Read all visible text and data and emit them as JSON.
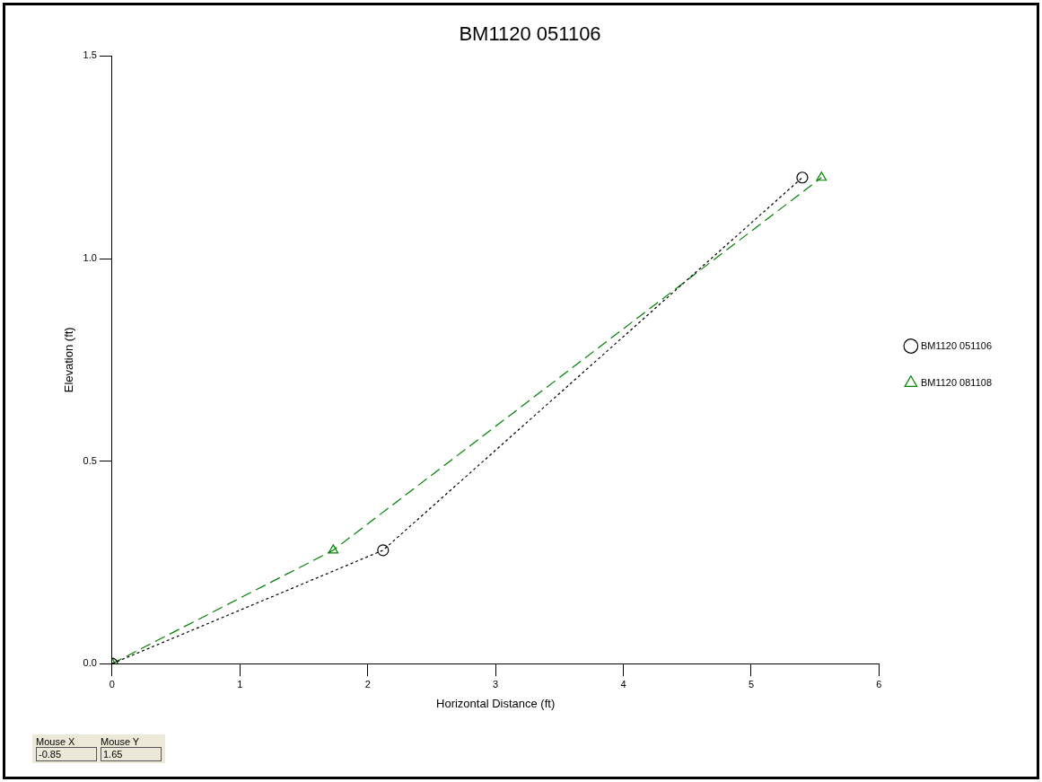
{
  "chart_data": {
    "type": "line",
    "title": "BM1120 051106",
    "xlabel": "Horizontal Distance (ft)",
    "ylabel": "Elevation (ft)",
    "series": [
      {
        "name": "BM1120 051106",
        "color": "#000000",
        "x": [
          0,
          2.12,
          5.4
        ],
        "values": [
          0,
          0.28,
          1.2
        ],
        "marker": "circle",
        "line_style": "dotted"
      },
      {
        "name": "BM1120 081108",
        "color": "#008000",
        "x": [
          0,
          1.73,
          5.55
        ],
        "values": [
          0,
          0.28,
          1.2
        ],
        "marker": "triangle",
        "line_style": "dashed"
      }
    ],
    "xlim": [
      0,
      6
    ],
    "xticks": [
      0,
      1,
      2,
      3,
      4,
      5,
      6
    ],
    "ylim": [
      0,
      1.5
    ],
    "yticks": [
      {
        "value": 0,
        "label": "0.0"
      },
      {
        "value": 0.5,
        "label": "0.5"
      },
      {
        "value": 1,
        "label": "1.0"
      },
      {
        "value": 1.5,
        "label": "1.5"
      }
    ],
    "grid": false,
    "legend": "right",
    "annotations": [
      "Mouse X",
      "-0.85",
      "Mouse Y",
      "1.65"
    ]
  }
}
